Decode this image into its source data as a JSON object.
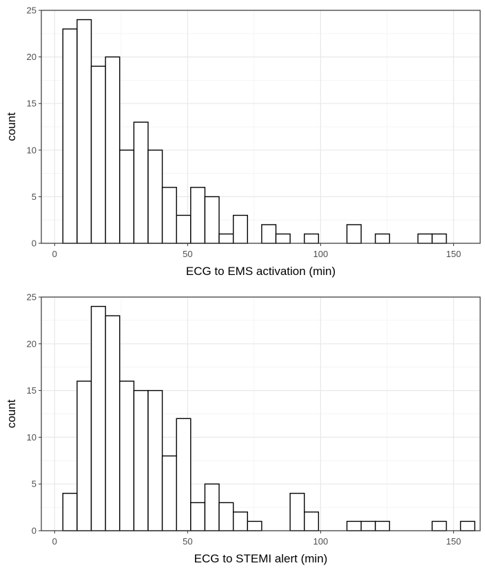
{
  "chart_data": [
    {
      "type": "bar",
      "xlabel": "ECG to EMS activation (min)",
      "ylabel": "count",
      "xlim": [
        -5,
        160
      ],
      "ylim": [
        0,
        25
      ],
      "x_ticks": [
        0,
        50,
        100,
        150
      ],
      "x_tick_labels": [
        "0",
        "50",
        "100",
        "150"
      ],
      "y_ticks": [
        0,
        5,
        10,
        15,
        20,
        25
      ],
      "y_tick_labels": [
        "0",
        "5",
        "10",
        "15",
        "20",
        "25"
      ],
      "grid": true,
      "bin_width": 5.34,
      "bin_start": 3.1,
      "values": [
        23,
        24,
        19,
        20,
        10,
        13,
        10,
        6,
        3,
        6,
        5,
        1,
        3,
        0,
        2,
        1,
        0,
        1,
        0,
        0,
        2,
        0,
        1,
        0,
        0,
        1,
        1,
        0
      ],
      "bar_fill": "#ffffff",
      "bar_stroke": "#000000"
    },
    {
      "type": "bar",
      "xlabel": "ECG to STEMI alert (min)",
      "ylabel": "count",
      "xlim": [
        -5,
        160
      ],
      "ylim": [
        0,
        25
      ],
      "x_ticks": [
        0,
        50,
        100,
        150
      ],
      "x_tick_labels": [
        "0",
        "50",
        "100",
        "150"
      ],
      "y_ticks": [
        0,
        5,
        10,
        15,
        20,
        25
      ],
      "y_tick_labels": [
        "0",
        "5",
        "10",
        "15",
        "20",
        "25"
      ],
      "grid": true,
      "bin_width": 5.34,
      "bin_start": 3.1,
      "values": [
        4,
        16,
        24,
        23,
        16,
        15,
        15,
        8,
        12,
        3,
        5,
        3,
        2,
        1,
        0,
        0,
        4,
        2,
        0,
        0,
        1,
        1,
        1,
        0,
        0,
        0,
        1,
        0,
        1
      ],
      "bar_fill": "#ffffff",
      "bar_stroke": "#000000"
    }
  ]
}
